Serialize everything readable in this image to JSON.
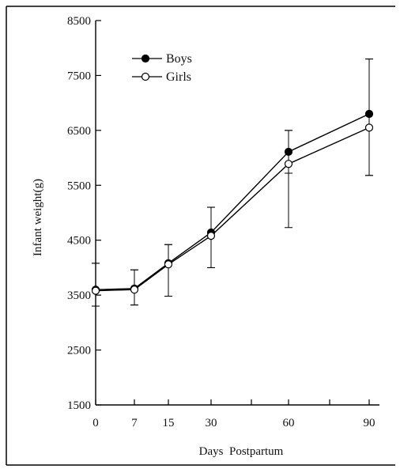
{
  "chart_data": {
    "type": "line",
    "title": "",
    "xlabel": "Days  Postpartum",
    "ylabel": "Infant weight(g)",
    "ylim": [
      1500,
      8500
    ],
    "yticks": [
      1500,
      2500,
      3500,
      4500,
      5500,
      6500,
      7500,
      8500
    ],
    "xticks": [
      0,
      7,
      15,
      30,
      60,
      90
    ],
    "grid": false,
    "legend_position": "top-left",
    "series": [
      {
        "name": "Boys",
        "marker": "filled-circle",
        "color": "#000000",
        "x": [
          0,
          7,
          15,
          30,
          60,
          90
        ],
        "y": [
          3600,
          3620,
          4080,
          4640,
          6110,
          6800
        ],
        "error_low": [
          3300,
          3320,
          3480,
          4000,
          5720,
          5680
        ],
        "error_high": [
          4080,
          3960,
          4420,
          5100,
          6500,
          7800
        ]
      },
      {
        "name": "Girls",
        "marker": "open-circle",
        "color": "#000000",
        "x": [
          0,
          7,
          15,
          30,
          60,
          90
        ],
        "y": [
          3580,
          3600,
          4060,
          4580,
          5890,
          6550
        ],
        "error_low": [
          3300,
          3320,
          3480,
          4000,
          4730,
          5680
        ],
        "error_high": [
          4080,
          3960,
          4420,
          5100,
          6500,
          7800
        ]
      }
    ]
  }
}
